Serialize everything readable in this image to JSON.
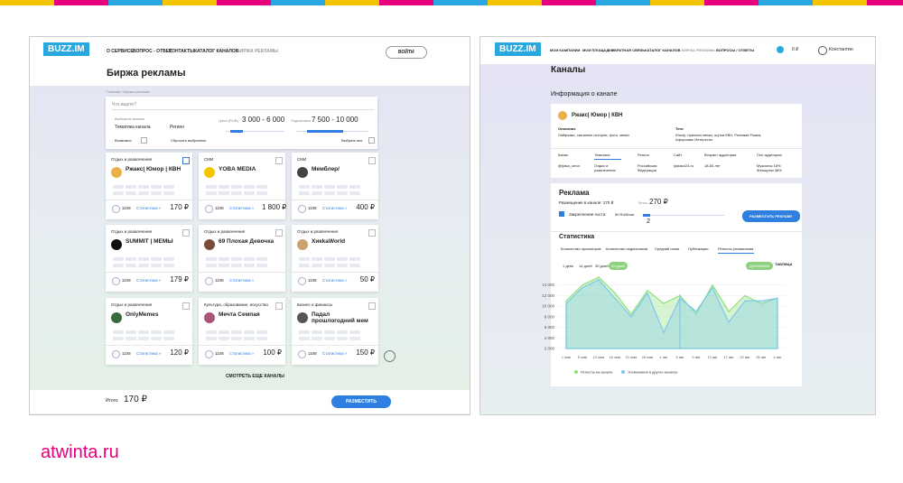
{
  "left": {
    "logo": "BUZZ.IM",
    "nav": [
      "О СЕРВИСЕ",
      "ВОПРОС - ОТВЕТ",
      "КОНТАКТЫ",
      "КАТАЛОГ КАНАЛОВ",
      "БИРЖА РЕКЛАМЫ"
    ],
    "login": "ВОЙТИ",
    "title": "Биржа рекламы",
    "breadcrumb": "Главная / Биржа рекламы",
    "filter": {
      "search": "Что ищете?",
      "choose": "Выберите каналы",
      "topic": "Тематика канала",
      "region": "Регион",
      "price_label": "Цена (RUB)",
      "price_range": "3 000 - 6 000",
      "subs_label": "Подписчики",
      "subs_range": "7 500 - 10 000",
      "possible": "Возможно",
      "reset": "Сбросить выбранное",
      "select_all": "Выбрать все"
    },
    "cards": [
      {
        "category": "Отдых и развлечения",
        "name": "Ржакс| Юмор | КВН",
        "subscribers": "1108",
        "stats": "Статистика »",
        "price": "170 ₽"
      },
      {
        "category": "СМИ",
        "name": "YOBA MEDIA",
        "subscribers": "1108",
        "stats": "Статистика »",
        "price": "1 800 ₽"
      },
      {
        "category": "СМИ",
        "name": "Мемблер/",
        "subscribers": "1108",
        "stats": "Статистика »",
        "price": "400 ₽"
      },
      {
        "category": "Отдых и развлечения",
        "name": "SUMMIT | MEMЫ",
        "subscribers": "1108",
        "stats": "Статистика »",
        "price": "179 ₽"
      },
      {
        "category": "Отдых и развлечения",
        "name": "69 Плохая Девочка",
        "subscribers": "1108",
        "stats": "Статистика »"
      },
      {
        "category": "Отдых и развлечения",
        "name": "ХикkaWorld",
        "subscribers": "1108",
        "stats": "Статистика »",
        "price": "50 ₽"
      },
      {
        "category": "Отдых и развлечения",
        "name": "OnlyMemes",
        "subscribers": "1108",
        "stats": "Статистика »",
        "price": "120 ₽"
      },
      {
        "category": "Культура, образование, искусство",
        "name": "Мечта Семпая",
        "subscribers": "1108",
        "stats": "Статистика »",
        "price": "100 ₽"
      },
      {
        "category": "Бизнес и финансы",
        "name": "Падал прошлогодний мем",
        "subscribers": "1108",
        "stats": "Статистика »",
        "price": "150 ₽"
      }
    ],
    "more": "СМОТРЕТЬ ЕЩЕ КАНАЛЫ",
    "total_label": "Итого:",
    "total": "170 ₽",
    "submit": "РАЗМЕСТИТЬ"
  },
  "right": {
    "logo": "BUZZ.IM",
    "nav": [
      "МОИ КАМПАНИИ",
      "МОИ ПЛОЩАДКИ",
      "ОБРАТНАЯ СВЯЗЬ",
      "КАТАЛОГ КАНАЛОВ",
      "БИРЖА РЕКЛАМЫ",
      "ВОПРОСЫ / ОТВЕТЫ"
    ],
    "balance": "0 ₽",
    "user": "Константин",
    "title": "Каналы",
    "subtitle": "Информация о канале",
    "channel": "Ржакс| Юмор | КВН",
    "description_label": "Описание",
    "description": "Лайфхаки, смешные истории, фото, мемы",
    "tags_label": "Теги",
    "tags": "Юмор, приколы мемы, шутки КВН, Реклама Ржака, Афоризмы Интересно",
    "table": {
      "headers": [
        "Канал",
        "Тематика",
        "Регион",
        "Сайт",
        "Возраст аудитории",
        "Пол аудитории"
      ],
      "row": [
        "@rjaka_umor",
        "Отдых и развлечения",
        "Российская Федерация",
        "rjakaco24.ru",
        "18-60 лет",
        "Мужчины 18% Женщины 38%"
      ]
    },
    "ad_title": "Реклама",
    "placement": "Размещение в канале: 170 ₽",
    "total_label": "Итого",
    "total": "270 ₽",
    "pin": "Закрепление поста:",
    "pin_rate": "50 RUB/час",
    "hours": "2",
    "place_button": "РАЗМЕСТИТЬ РЕКЛАМУ",
    "stats_title": "Статистика",
    "tabs": [
      "Количество просмотров",
      "Количество подписчиков",
      "Средний охват",
      "Публикации",
      "Репосты упоминания"
    ],
    "periods": [
      "1 день",
      "14 дней",
      "30 дней",
      "90 дней"
    ],
    "view_dynamic": "ДИНАМИКА",
    "view_table": "ТАБЛИЦА"
  },
  "chart_data": {
    "type": "area",
    "categories": [
      "1 мая",
      "5 мая",
      "12 мая",
      "16 мая",
      "21 мая",
      "26 мая",
      "1 авг",
      "5 авг",
      "9 авг",
      "13 авг",
      "17 авг",
      "22 авг",
      "26 авг",
      "4 авг"
    ],
    "series": [
      {
        "name": "Репосты на канале",
        "color": "#8ee07a",
        "values": [
          11000,
          14000,
          15500,
          12500,
          8500,
          13000,
          10500,
          12000,
          8500,
          14000,
          9000,
          12000,
          10500,
          11500
        ]
      },
      {
        "name": "Упоминания в других каналах",
        "color": "#7cc8ee",
        "values": [
          10500,
          13500,
          15000,
          11500,
          8000,
          12500,
          5000,
          11500,
          9000,
          13500,
          7000,
          11000,
          11000,
          11500
        ]
      }
    ],
    "ylim": [
      2000,
      16000
    ],
    "yticks": [
      {
        "value": 2000,
        "label": "2 000"
      },
      {
        "value": 4000,
        "label": "4 000"
      },
      {
        "value": 6000,
        "label": "6 000"
      },
      {
        "value": 8000,
        "label": "8 000"
      },
      {
        "value": 10000,
        "label": "10 000"
      },
      {
        "value": 12000,
        "label": "12 000"
      },
      {
        "value": 14000,
        "label": "14 000"
      }
    ],
    "grid": true
  },
  "footer": "atwinta.ru"
}
